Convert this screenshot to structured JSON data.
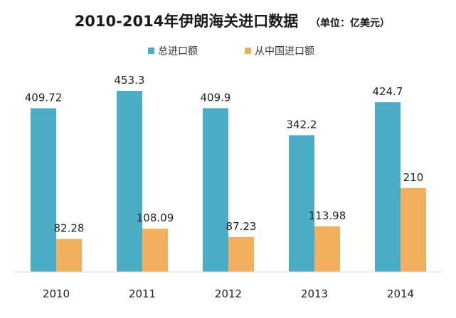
{
  "chart_data": {
    "type": "bar",
    "title": "2010-2014年伊朗海关进口数据",
    "subtitle": "（单位：亿美元）",
    "xlabel": "",
    "ylabel": "",
    "categories": [
      "2010",
      "2011",
      "2012",
      "2013",
      "2014"
    ],
    "series": [
      {
        "name": "总进口额",
        "color": "#4BACC6",
        "values": [
          409.72,
          453.3,
          409.9,
          342.2,
          424.7
        ],
        "labels": [
          "409.72",
          "453.3",
          "409.9",
          "342.2",
          "424.7"
        ]
      },
      {
        "name": "从中国进口额",
        "color": "#F2B05E",
        "values": [
          82.28,
          108.09,
          87.23,
          113.98,
          210
        ],
        "labels": [
          "82.28",
          "108.09",
          "87.23",
          "113.98",
          "210"
        ]
      }
    ],
    "ylim": [
      0,
      500
    ],
    "grid": false,
    "legend": "top-center"
  }
}
